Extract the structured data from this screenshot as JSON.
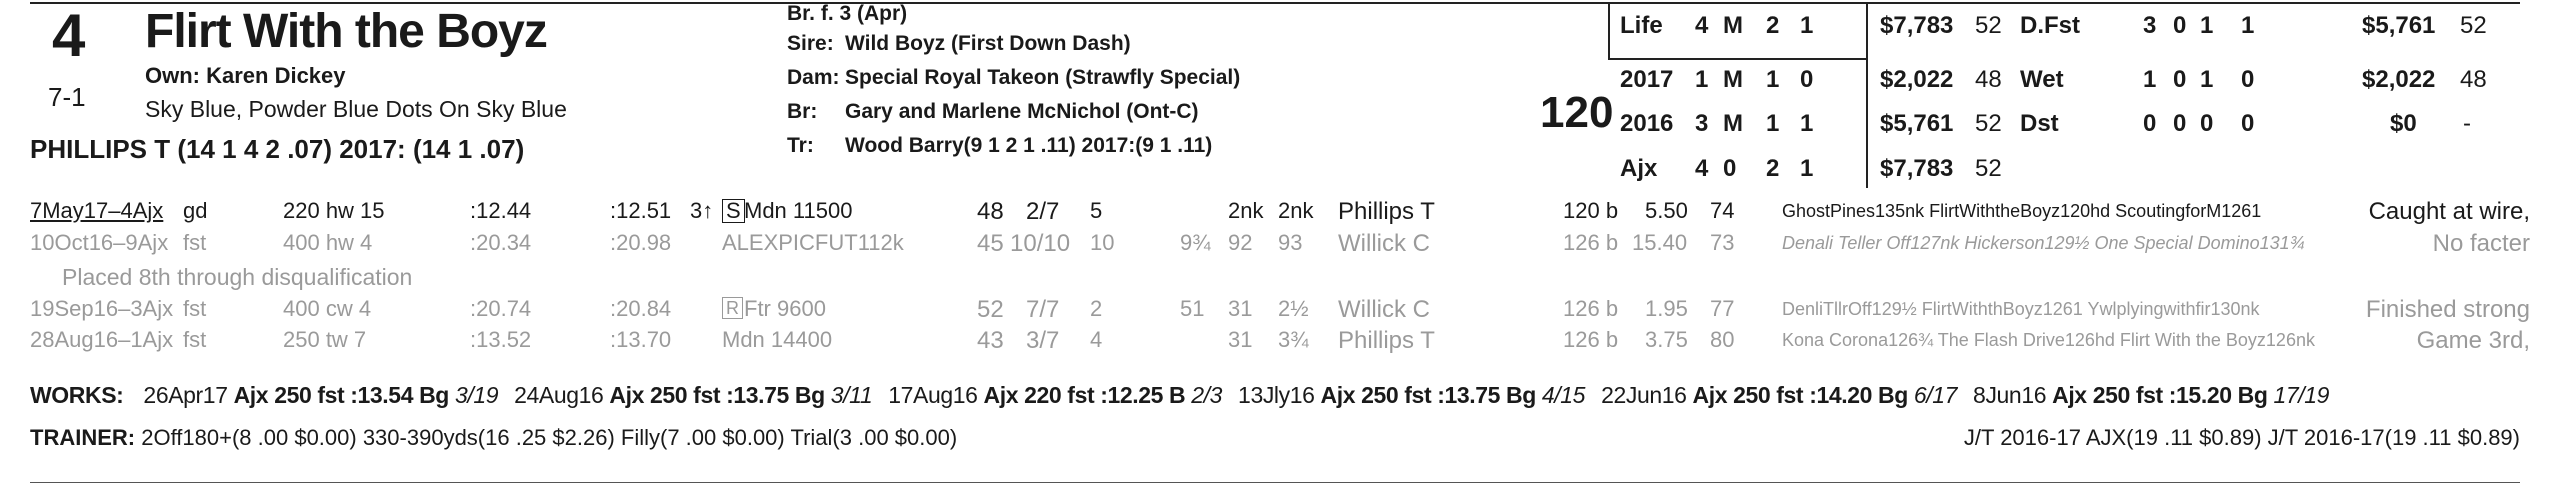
{
  "horse": {
    "post": "4",
    "odds": "7-1",
    "name": "Flirt With the Boyz",
    "owner": "Own: Karen Dickey",
    "silks": "Sky Blue, Powder Blue Dots On Sky Blue",
    "jockey": "PHILLIPS T (14 1 4 2 .07) 2017: (14 1 .07)"
  },
  "pedigree": {
    "sex_age": "Br. f. 3 (Apr)",
    "sire_label": "Sire:",
    "sire": "Wild Boyz (First Down Dash)",
    "dam_label": "Dam:",
    "dam": "Special Royal Takeon (Strawfly Special)",
    "breeder_label": "Br:",
    "breeder": "Gary and Marlene McNichol (Ont-C)",
    "trainer_label": "Tr:",
    "trainer": "Wood Barry(9 1 2 1 .11) 2017:(9 1 .11)"
  },
  "weight": "120",
  "stats_left": [
    {
      "label": "Life",
      "st": "4",
      "w": "M",
      "p": "2",
      "s": "1",
      "earn": "$7,783",
      "spd": "52"
    },
    {
      "label": "2017",
      "st": "1",
      "w": "M",
      "p": "1",
      "s": "0",
      "earn": "$2,022",
      "spd": "48"
    },
    {
      "label": "2016",
      "st": "3",
      "w": "M",
      "p": "1",
      "s": "1",
      "earn": "$5,761",
      "spd": "52"
    },
    {
      "label": "Ajx",
      "st": "4",
      "w": "0",
      "p": "2",
      "s": "1",
      "earn": "$7,783",
      "spd": "52"
    }
  ],
  "stats_right": [
    {
      "label": "D.Fst",
      "st": "3",
      "w": "0",
      "p": "1",
      "s": "1",
      "earn": "$5,761",
      "spd": "52"
    },
    {
      "label": "Wet",
      "st": "1",
      "w": "0",
      "p": "1",
      "s": "0",
      "earn": "$2,022",
      "spd": "48"
    },
    {
      "label": "Dst",
      "st": "0",
      "w": "0",
      "p": "0",
      "s": "0",
      "earn": "$0",
      "spd": "-"
    }
  ],
  "races": [
    {
      "date": "7May17–4Ajx",
      "cond": "gd",
      "dist": "220 hw 15",
      "fr1": ":12.44",
      "fr2": ":12.51",
      "rtype": "Mdn 11500",
      "rtype_prefix": "3↑",
      "rtype_box": "S",
      "spd": "48",
      "pp": "2/7",
      "st": "5",
      "c1": "",
      "c2": "2nk",
      "fin": "2nk",
      "jockey": "Phillips T",
      "wt": "120 b",
      "odds": "5.50",
      "sr": "74",
      "comp": "GhostPines135nk FlirtWiththeBoyz120hd ScoutingforM1261",
      "comment": "Caught at wire,"
    },
    {
      "date": "10Oct16–9Ajx",
      "cond": "fst",
      "dist": "400 hw 4",
      "fr1": ":20.34",
      "fr2": ":20.98",
      "rtype": "ALEXPICFUT112k",
      "rtype_prefix": "",
      "rtype_box": "",
      "spd": "45",
      "pp": "10/10",
      "st": "10",
      "c1": "9¾",
      "c2": "92",
      "fin": "93",
      "jockey": "Willick C",
      "wt": "126 b",
      "odds": "15.40",
      "sr": "73",
      "comp": "Denali Teller Off127nk Hickerson129½ One Special Domino131¾",
      "comment": "No facter"
    },
    {
      "date": "19Sep16–3Ajx",
      "cond": "fst",
      "dist": "400 cw 4",
      "fr1": ":20.74",
      "fr2": ":20.84",
      "rtype": "Ftr 9600",
      "rtype_prefix": "",
      "rtype_box": "R",
      "spd": "52",
      "pp": "7/7",
      "st": "2",
      "c1": "51",
      "c2": "31",
      "fin": "2½",
      "jockey": "Willick C",
      "wt": "126 b",
      "odds": "1.95",
      "sr": "77",
      "comp": "DenliTllrOff129½ FlirtWiththBoyz1261 Ywlplyingwithfir130nk",
      "comment": "Finished strong"
    },
    {
      "date": "28Aug16–1Ajx",
      "cond": "fst",
      "dist": "250 tw 7",
      "fr1": ":13.52",
      "fr2": ":13.70",
      "rtype": "Mdn 14400",
      "rtype_prefix": "",
      "rtype_box": "",
      "spd": "43",
      "pp": "3/7",
      "st": "4",
      "c1": "",
      "c2": "31",
      "fin": "3¾",
      "jockey": "Phillips T",
      "wt": "126 b",
      "odds": "3.75",
      "sr": "80",
      "comp": "Kona Corona126¾ The Flash Drive126hd Flirt With the Boyz126nk",
      "comment": "Game 3rd,"
    }
  ],
  "dq_note": "Placed 8th through disqualification",
  "works_label": "WORKS:",
  "works": [
    {
      "date": "26Apr17",
      "track": "Ajx",
      "dist": "250 fst",
      "time": ":13.54",
      "grade": "Bg",
      "rank": "3/19"
    },
    {
      "date": "24Aug16",
      "track": "Ajx",
      "dist": "250 fst",
      "time": ":13.75",
      "grade": "Bg",
      "rank": "3/11"
    },
    {
      "date": "17Aug16",
      "track": "Ajx",
      "dist": "220 fst",
      "time": ":12.25",
      "grade": "B",
      "rank": "2/3"
    },
    {
      "date": "13Jly16",
      "track": "Ajx",
      "dist": "250 fst",
      "time": ":13.75",
      "grade": "Bg",
      "rank": "4/15"
    },
    {
      "date": "22Jun16",
      "track": "Ajx",
      "dist": "250 fst",
      "time": ":14.20",
      "grade": "Bg",
      "rank": "6/17"
    },
    {
      "date": "8Jun16",
      "track": "Ajx",
      "dist": "250 fst",
      "time": ":15.20",
      "grade": "Bg",
      "rank": "17/19"
    }
  ],
  "trainer_label": "TRAINER:",
  "trainer_stats": "2Off180+(8 .00 $0.00) 330-390yds(16 .25 $2.26) Filly(7 .00 $0.00) Trial(3 .00 $0.00)",
  "jt_stats": "J/T 2016-17 AJX(19 .11 $0.89) J/T 2016-17(19 .11 $0.89)"
}
